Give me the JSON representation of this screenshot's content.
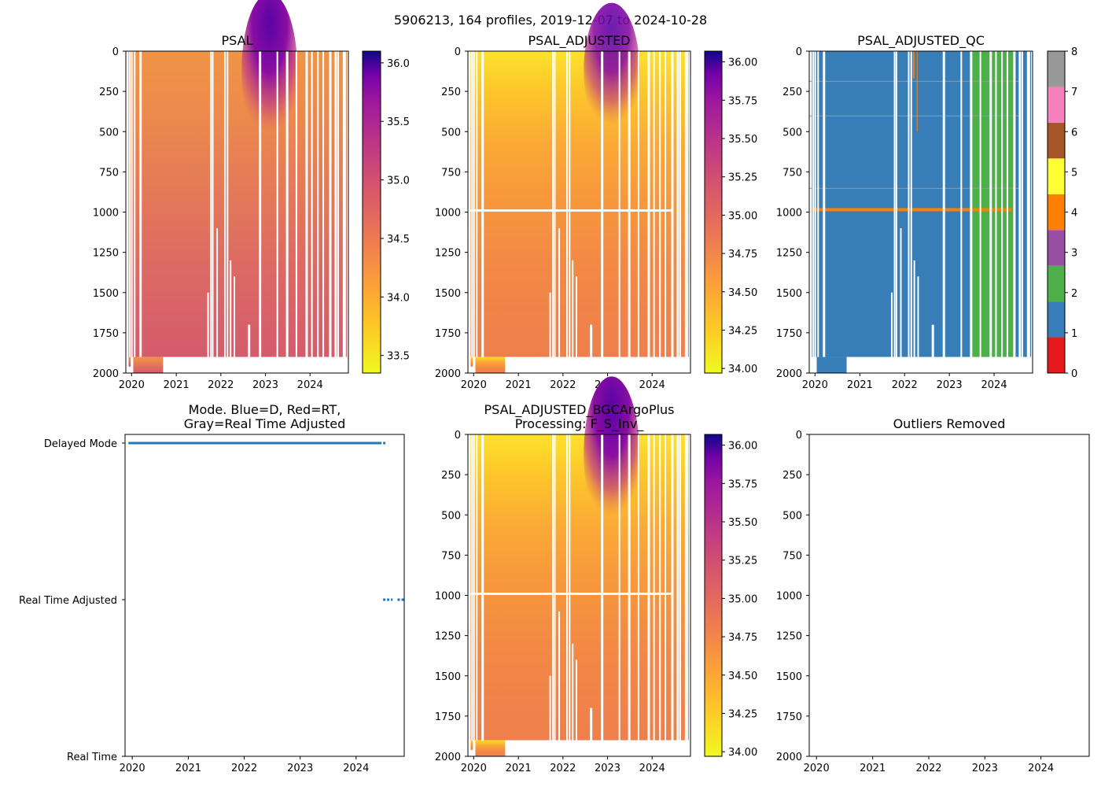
{
  "suptitle": "5906213, 164 profiles, 2019-12-07 to 2024-10-28",
  "chart_data": [
    {
      "type": "heatmap",
      "title": "PSAL",
      "variable": "PSAL",
      "x_ticks": [
        "2020",
        "2021",
        "2022",
        "2023",
        "2024"
      ],
      "y_ticks": [
        "0",
        "250",
        "500",
        "750",
        "1000",
        "1250",
        "1500",
        "1750",
        "2000"
      ],
      "xlim": [
        "2019-11-15",
        "2024-11-10"
      ],
      "ylim": [
        2000,
        0
      ],
      "colormap": "plasma_r",
      "colorbar": {
        "range": [
          33.35,
          36.1
        ],
        "ticks": [
          "33.5",
          "34.0",
          "34.5",
          "35.0",
          "35.5",
          "36.0"
        ]
      }
    },
    {
      "type": "heatmap",
      "title": "PSAL_ADJUSTED",
      "variable": "PSAL_ADJUSTED",
      "x_ticks": [
        "2020",
        "2021",
        "2022",
        "2023",
        "2024"
      ],
      "y_ticks": [
        "0",
        "250",
        "500",
        "750",
        "1000",
        "1250",
        "1500",
        "1750",
        "2000"
      ],
      "xlim": [
        "2019-11-15",
        "2024-11-10"
      ],
      "ylim": [
        2000,
        0
      ],
      "colormap": "plasma_r",
      "colorbar": {
        "range": [
          33.97,
          36.07
        ],
        "ticks": [
          "34.00",
          "34.25",
          "34.50",
          "34.75",
          "35.00",
          "35.25",
          "35.50",
          "35.75",
          "36.00"
        ]
      },
      "notes": "gap near 985-995 dbar"
    },
    {
      "type": "heatmap",
      "title": "PSAL_ADJUSTED_QC",
      "variable": "PSAL_ADJUSTED_QC",
      "x_ticks": [
        "2020",
        "2021",
        "2022",
        "2023",
        "2024"
      ],
      "y_ticks": [
        "0",
        "250",
        "500",
        "750",
        "1000",
        "1250",
        "1500",
        "1750",
        "2000"
      ],
      "xlim": [
        "2019-11-15",
        "2024-11-10"
      ],
      "ylim": [
        2000,
        0
      ],
      "colorbar": {
        "type": "discrete",
        "ticks": [
          "0",
          "1",
          "2",
          "3",
          "4",
          "5",
          "6",
          "7",
          "8"
        ],
        "colors": [
          "#e41a1c",
          "#377eb8",
          "#4daf4a",
          "#984ea3",
          "#ff7f00",
          "#ffff33",
          "#a65628",
          "#f781bf",
          "#999999"
        ]
      },
      "notes": "QC=1 through mid-2023, QC=2 from 2023-06 to 2024-06, QC=4 band near 980-990 dbar"
    },
    {
      "type": "scatter",
      "title": "Mode. Blue=D, Red=RT,\nGray=Real Time Adjusted",
      "title_lines": [
        "Mode. Blue=D, Red=RT,",
        "Gray=Real Time Adjusted"
      ],
      "x_ticks": [
        "2020",
        "2021",
        "2022",
        "2023",
        "2024"
      ],
      "y_ticks": [
        "Delayed Mode",
        "Real Time Adjusted",
        "Real Time"
      ],
      "xlim": [
        "2019-11-15",
        "2024-11-10"
      ],
      "series": [
        {
          "name": "Delayed Mode",
          "y": "Delayed Mode",
          "x_range": [
            "2019-12-07",
            "2024-06-15"
          ]
        },
        {
          "name": "Real Time Adjusted",
          "y": "Real Time Adjusted",
          "x_range": [
            "2024-06-25",
            "2024-10-28"
          ]
        }
      ]
    },
    {
      "type": "heatmap",
      "title": "PSAL_ADJUSTED_BGCArgoPlus\nProcessing: F_S_Inv_",
      "title_lines": [
        "PSAL_ADJUSTED_BGCArgoPlus",
        "Processing: F_S_Inv_"
      ],
      "variable": "PSAL_ADJUSTED_BGCArgoPlus",
      "x_ticks": [
        "2020",
        "2021",
        "2022",
        "2023",
        "2024"
      ],
      "y_ticks": [
        "0",
        "250",
        "500",
        "750",
        "1000",
        "1250",
        "1500",
        "1750",
        "2000"
      ],
      "xlim": [
        "2019-11-15",
        "2024-11-10"
      ],
      "ylim": [
        2000,
        0
      ],
      "colormap": "plasma_r",
      "colorbar": {
        "range": [
          33.97,
          36.07
        ],
        "ticks": [
          "34.00",
          "34.25",
          "34.50",
          "34.75",
          "35.00",
          "35.25",
          "35.50",
          "35.75",
          "36.00"
        ]
      }
    },
    {
      "type": "scatter",
      "title": "Outliers Removed",
      "x_ticks": [
        "2020",
        "2021",
        "2022",
        "2023",
        "2024"
      ],
      "y_ticks": [
        "0",
        "250",
        "500",
        "750",
        "1000",
        "1250",
        "1500",
        "1750",
        "2000"
      ],
      "xlim": [
        "2019-11-15",
        "2024-11-10"
      ],
      "ylim": [
        2000,
        0
      ],
      "values": []
    }
  ]
}
